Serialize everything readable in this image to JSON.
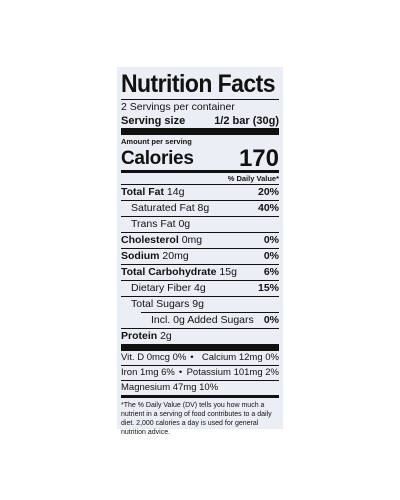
{
  "label": {
    "title": "Nutrition Facts",
    "servings_per_container": "2 Servings per container",
    "serving_size_label": "Serving size",
    "serving_size_value": "1/2 bar (30g)",
    "amount_per_serving": "Amount per serving",
    "calories_label": "Calories",
    "calories_value": "170",
    "daily_value_header": "% Daily Value*",
    "nutrients": [
      {
        "name": "Total Fat",
        "amount": "14g",
        "dv": "20%"
      },
      {
        "name": "Saturated Fat",
        "amount": "8g",
        "dv": "40%"
      },
      {
        "name": "Trans Fat",
        "amount": "0g",
        "dv": ""
      },
      {
        "name": "Cholesterol",
        "amount": "0mg",
        "dv": "0%"
      },
      {
        "name": "Sodium",
        "amount": "20mg",
        "dv": "0%"
      },
      {
        "name": "Total Carbohydrate",
        "amount": "15g",
        "dv": "6%"
      },
      {
        "name": "Dietary Fiber",
        "amount": "4g",
        "dv": "15%"
      },
      {
        "name": "Total Sugars",
        "amount": "9g",
        "dv": ""
      },
      {
        "name": "Incl. 0g Added Sugars",
        "amount": "",
        "dv": "0%"
      },
      {
        "name": "Protein",
        "amount": "2g",
        "dv": ""
      }
    ],
    "vitamins": [
      {
        "left": "Vit. D 0mcg 0%",
        "right": "Calcium 12mg 0%"
      },
      {
        "left": "Iron 1mg 6%",
        "right": "Potassium 101mg 2%"
      },
      {
        "left": "Magnesium 47mg 10%",
        "right": ""
      }
    ],
    "bullet": "•",
    "footnote": "*The % Daily Value (DV) tells you how much a nutrient in a serving of food contributes to a daily diet. 2,000 calories a day is used for general nutrition advice."
  }
}
